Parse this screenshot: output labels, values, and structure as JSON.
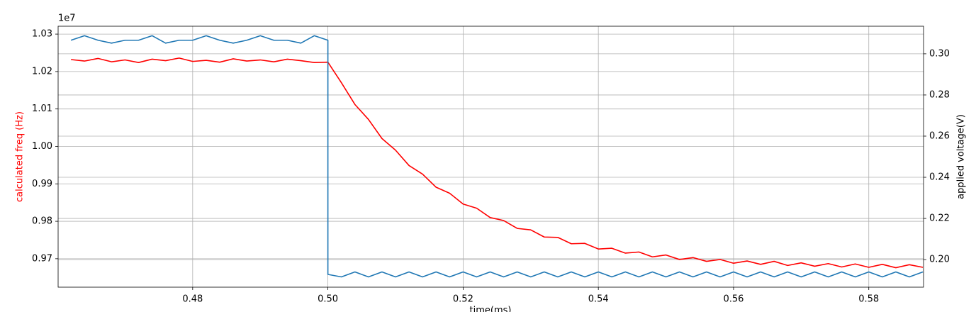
{
  "chart_data": {
    "type": "line",
    "offset_label": "1e7",
    "xlabel": "time(ms)",
    "ylabel": "calculated freq (Hz)",
    "y2label": "applied voltage(V)",
    "xlim": [
      0.4601,
      0.5881
    ],
    "ylim": [
      0.9624,
      1.0321
    ],
    "y2lim": [
      0.1866,
      0.3134
    ],
    "xticks": [
      0.48,
      {
        "value": 0.5,
        "label": "0.50"
      },
      0.52,
      0.54,
      0.56,
      0.58
    ],
    "yticks": [
      0.97,
      0.98,
      0.99,
      {
        "value": 1.0,
        "label": "1.00"
      },
      1.01,
      1.02,
      1.03
    ],
    "y2ticks": [
      {
        "value": 0.2,
        "label": "0.20"
      },
      0.22,
      0.24,
      0.26,
      0.28,
      {
        "value": 0.3,
        "label": "0.30"
      }
    ],
    "grid": true,
    "series": [
      {
        "color": "#ff0000",
        "axis": "y",
        "x": [
          0.462,
          0.464,
          0.466,
          0.468,
          0.47,
          0.472,
          0.474,
          0.476,
          0.478,
          0.48,
          0.482,
          0.484,
          0.486,
          0.488,
          0.49,
          0.492,
          0.494,
          0.496,
          0.498,
          0.5,
          0.502,
          0.504,
          0.506,
          0.508,
          0.51,
          0.512,
          0.514,
          0.516,
          0.518,
          0.52,
          0.522,
          0.524,
          0.526,
          0.528,
          0.53,
          0.532,
          0.534,
          0.536,
          0.538,
          0.54,
          0.542,
          0.544,
          0.546,
          0.548,
          0.55,
          0.552,
          0.554,
          0.556,
          0.558,
          0.56,
          0.562,
          0.564,
          0.566,
          0.568,
          0.57,
          0.572,
          0.574,
          0.576,
          0.578,
          0.58,
          0.582,
          0.584,
          0.586,
          0.588
        ],
        "values": [
          1.0232,
          1.0228,
          1.0235,
          1.0226,
          1.0231,
          1.0224,
          1.0233,
          1.0229,
          1.0236,
          1.0227,
          1.023,
          1.0225,
          1.0234,
          1.0228,
          1.0231,
          1.0226,
          1.0233,
          1.0229,
          1.0224,
          1.0225,
          1.017,
          1.0112,
          1.0072,
          1.0021,
          0.999,
          0.9949,
          0.9926,
          0.9891,
          0.9875,
          0.9846,
          0.9835,
          0.981,
          0.9802,
          0.9781,
          0.9777,
          0.9758,
          0.9757,
          0.974,
          0.9741,
          0.9726,
          0.9728,
          0.9715,
          0.9718,
          0.9705,
          0.971,
          0.9698,
          0.9703,
          0.9693,
          0.9698,
          0.9688,
          0.9694,
          0.9685,
          0.9693,
          0.9682,
          0.9689,
          0.968,
          0.9687,
          0.9678,
          0.9686,
          0.9677,
          0.9685,
          0.9676,
          0.9684,
          0.9677
        ]
      },
      {
        "color": "#1f77b4",
        "axis": "y2",
        "x": [
          0.462,
          0.464,
          0.466,
          0.468,
          0.47,
          0.472,
          0.474,
          0.476,
          0.478,
          0.48,
          0.482,
          0.484,
          0.486,
          0.488,
          0.49,
          0.492,
          0.494,
          0.496,
          0.498,
          0.5,
          0.5,
          0.502,
          0.504,
          0.506,
          0.508,
          0.51,
          0.512,
          0.514,
          0.516,
          0.518,
          0.52,
          0.522,
          0.524,
          0.526,
          0.528,
          0.53,
          0.532,
          0.534,
          0.536,
          0.538,
          0.54,
          0.542,
          0.544,
          0.546,
          0.548,
          0.55,
          0.552,
          0.554,
          0.556,
          0.558,
          0.56,
          0.562,
          0.564,
          0.566,
          0.568,
          0.57,
          0.572,
          0.574,
          0.576,
          0.578,
          0.58,
          0.582,
          0.584,
          0.586,
          0.588
        ],
        "values": [
          0.3066,
          0.3088,
          0.3066,
          0.3052,
          0.3066,
          0.3066,
          0.3088,
          0.3052,
          0.3066,
          0.3066,
          0.3088,
          0.3066,
          0.3052,
          0.3066,
          0.3088,
          0.3066,
          0.3066,
          0.3052,
          0.3088,
          0.3066,
          0.1928,
          0.1916,
          0.194,
          0.1916,
          0.194,
          0.1916,
          0.194,
          0.1916,
          0.194,
          0.1916,
          0.194,
          0.1916,
          0.194,
          0.1916,
          0.194,
          0.1916,
          0.194,
          0.1916,
          0.194,
          0.1916,
          0.194,
          0.1916,
          0.194,
          0.1916,
          0.194,
          0.1916,
          0.194,
          0.1916,
          0.194,
          0.1916,
          0.194,
          0.1916,
          0.194,
          0.1916,
          0.194,
          0.1916,
          0.194,
          0.1916,
          0.194,
          0.1916,
          0.194,
          0.1916,
          0.194,
          0.1916,
          0.194
        ]
      }
    ]
  }
}
